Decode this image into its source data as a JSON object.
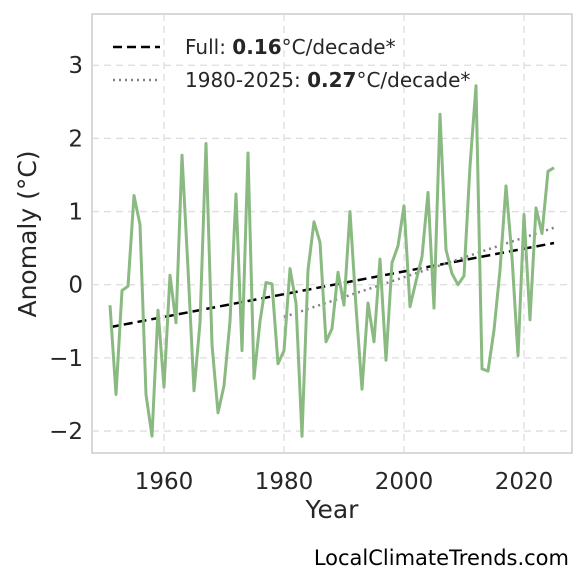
{
  "chart_data": {
    "type": "line",
    "title": "",
    "xlabel": "Year",
    "ylabel": "Anomaly (°C)",
    "xlim": [
      1948,
      2028
    ],
    "ylim": [
      -2.3,
      3.7
    ],
    "xticks": [
      1960,
      1980,
      2000,
      2020
    ],
    "yticks": [
      -2,
      -1,
      0,
      1,
      2,
      3
    ],
    "yticks_labels": [
      "−2",
      "−1",
      "0",
      "1",
      "2",
      "3"
    ],
    "grid": true,
    "legend_position": "top-left",
    "colors": {
      "series": "#8aba82",
      "trend_full": "#000000",
      "trend_recent": "#808080"
    },
    "x": [
      1951,
      1952,
      1953,
      1954,
      1955,
      1956,
      1957,
      1958,
      1959,
      1960,
      1961,
      1962,
      1963,
      1964,
      1965,
      1966,
      1967,
      1968,
      1969,
      1970,
      1971,
      1972,
      1973,
      1974,
      1975,
      1976,
      1977,
      1978,
      1979,
      1980,
      1981,
      1982,
      1983,
      1984,
      1985,
      1986,
      1987,
      1988,
      1989,
      1990,
      1991,
      1992,
      1993,
      1994,
      1995,
      1996,
      1997,
      1998,
      1999,
      2000,
      2001,
      2002,
      2003,
      2004,
      2005,
      2006,
      2007,
      2008,
      2009,
      2010,
      2011,
      2012,
      2013,
      2014,
      2015,
      2016,
      2017,
      2018,
      2019,
      2020,
      2021,
      2022,
      2023,
      2024,
      2025
    ],
    "series": [
      {
        "name": "",
        "values": [
          -0.28,
          -1.5,
          -0.08,
          -0.02,
          1.22,
          0.82,
          -1.5,
          -2.07,
          -0.35,
          -1.4,
          0.13,
          -0.52,
          1.77,
          0.22,
          -1.45,
          -0.52,
          1.93,
          -0.82,
          -1.75,
          -1.38,
          -0.5,
          1.24,
          -0.9,
          1.8,
          -1.28,
          -0.5,
          0.03,
          0.01,
          -1.08,
          -0.9,
          0.22,
          -0.25,
          -2.07,
          0.2,
          0.86,
          0.58,
          -0.78,
          -0.6,
          0.17,
          -0.28,
          1.0,
          -0.3,
          -1.43,
          -0.25,
          -0.78,
          0.35,
          -1.03,
          0.3,
          0.53,
          1.08,
          -0.3,
          0.05,
          0.38,
          1.26,
          -0.32,
          2.33,
          0.48,
          0.15,
          0.0,
          0.12,
          1.62,
          2.72,
          -1.15,
          -1.18,
          -0.62,
          0.2,
          1.35,
          0.38,
          -0.97,
          0.96,
          -0.48,
          1.05,
          0.7,
          1.55,
          1.6
        ]
      }
    ],
    "trends": [
      {
        "label_prefix": "Full: ",
        "rate": "0.16",
        "label_suffix": "°C/decade*",
        "x": [
          1951,
          2025
        ],
        "y": [
          -0.58,
          0.57
        ],
        "style": "dashed"
      },
      {
        "label_prefix": "1980-2025: ",
        "rate": "0.27",
        "label_suffix": "°C/decade*",
        "x": [
          1980,
          2025
        ],
        "y": [
          -0.44,
          0.78
        ],
        "style": "dotted"
      }
    ]
  },
  "credit": "LocalClimateTrends.com"
}
